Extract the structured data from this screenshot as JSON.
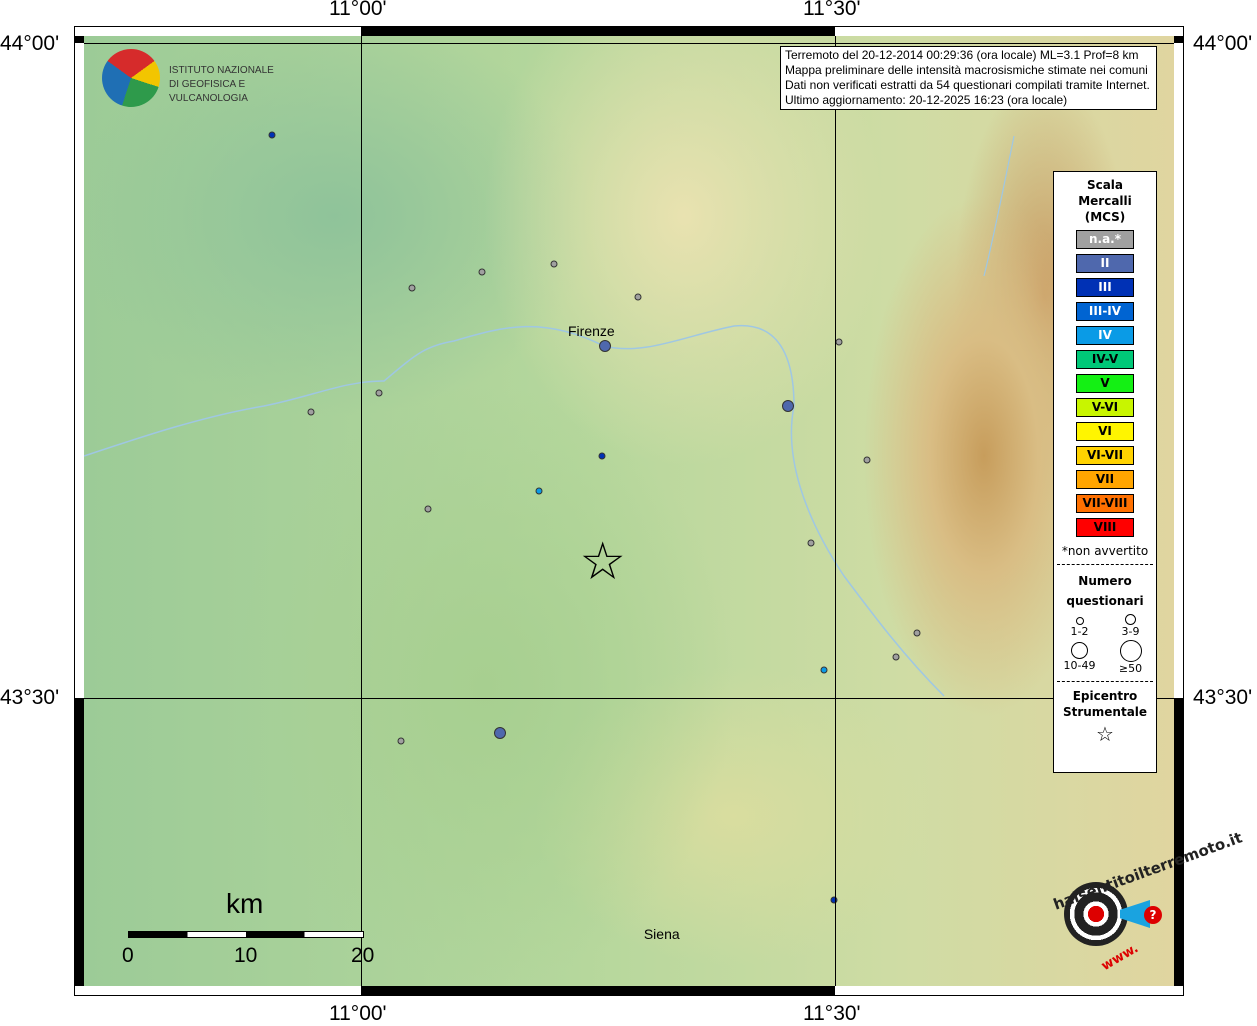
{
  "axes": {
    "lon_labels": [
      "11°00'",
      "11°30'"
    ],
    "lat_labels": [
      "44°00'",
      "43°30'"
    ]
  },
  "logo": {
    "line1": "ISTITUTO NAZIONALE",
    "line2": "DI GEOFISICA E VULCANOLOGIA"
  },
  "info": [
    "Terremoto del 20-12-2014 00:29:36 (ora locale) ML=3.1 Prof=8 km",
    "Mappa preliminare delle intensità macrosismiche stimate nei comuni",
    "Dati non verificati estratti da 54 questionari compilati tramite Internet.",
    "Ultimo aggiornamento: 20-12-2025 16:23 (ora locale)"
  ],
  "legend": {
    "title": [
      "Scala",
      "Mercalli",
      "(MCS)"
    ],
    "classes": [
      {
        "label": "n.a.*",
        "color": "#a0a0a0",
        "text": "#fff"
      },
      {
        "label": "II",
        "color": "#4f68ad",
        "text": "#fff"
      },
      {
        "label": "III",
        "color": "#0031b5",
        "text": "#fff"
      },
      {
        "label": "III-IV",
        "color": "#0064d2",
        "text": "#fff"
      },
      {
        "label": "IV",
        "color": "#0a9be6",
        "text": "#fff"
      },
      {
        "label": "IV-V",
        "color": "#00c878",
        "text": "#000"
      },
      {
        "label": "V",
        "color": "#14f014",
        "text": "#000"
      },
      {
        "label": "V-VI",
        "color": "#c8f500",
        "text": "#000"
      },
      {
        "label": "VI",
        "color": "#fff500",
        "text": "#000"
      },
      {
        "label": "VI-VII",
        "color": "#ffd200",
        "text": "#000"
      },
      {
        "label": "VII",
        "color": "#ffa500",
        "text": "#000"
      },
      {
        "label": "VII-VIII",
        "color": "#ff7000",
        "text": "#000"
      },
      {
        "label": "VIII",
        "color": "#ff0000",
        "text": "#000"
      }
    ],
    "note": "*non avvertito",
    "count_title": [
      "Numero",
      "questionari"
    ],
    "sizes": [
      "1-2",
      "3-9",
      "10-49",
      "≥50"
    ],
    "epi_title": [
      "Epicentro",
      "Strumentale"
    ]
  },
  "cities": [
    {
      "name": "Firenze",
      "lon": 11.25,
      "lat": 43.78
    },
    {
      "name": "Siena",
      "lon": 11.33,
      "lat": 43.32
    }
  ],
  "epicenter": {
    "lon": 11.255,
    "lat": 43.604
  },
  "points": [
    {
      "lon": 10.906,
      "lat": 43.93,
      "class": "III",
      "n": "1-2"
    },
    {
      "lon": 11.128,
      "lat": 43.825,
      "class": "n.a.*",
      "n": "1-2"
    },
    {
      "lon": 11.204,
      "lat": 43.831,
      "class": "n.a.*",
      "n": "1-2"
    },
    {
      "lon": 11.054,
      "lat": 43.813,
      "class": "n.a.*",
      "n": "1-2"
    },
    {
      "lon": 11.292,
      "lat": 43.806,
      "class": "n.a.*",
      "n": "1-2"
    },
    {
      "lon": 11.257,
      "lat": 43.769,
      "class": "II",
      "n": "3-9"
    },
    {
      "lon": 11.504,
      "lat": 43.772,
      "class": "n.a.*",
      "n": "1-2"
    },
    {
      "lon": 11.019,
      "lat": 43.733,
      "class": "n.a.*",
      "n": "1-2"
    },
    {
      "lon": 10.947,
      "lat": 43.718,
      "class": "n.a.*",
      "n": "1-2"
    },
    {
      "lon": 11.45,
      "lat": 43.723,
      "class": "II",
      "n": "3-9"
    },
    {
      "lon": 11.254,
      "lat": 43.685,
      "class": "III",
      "n": "1-2"
    },
    {
      "lon": 11.188,
      "lat": 43.658,
      "class": "IV",
      "n": "1-2"
    },
    {
      "lon": 11.071,
      "lat": 43.644,
      "class": "n.a.*",
      "n": "1-2"
    },
    {
      "lon": 11.534,
      "lat": 43.682,
      "class": "n.a.*",
      "n": "1-2"
    },
    {
      "lon": 11.475,
      "lat": 43.618,
      "class": "n.a.*",
      "n": "1-2"
    },
    {
      "lon": 11.586,
      "lat": 43.55,
      "class": "n.a.*",
      "n": "1-2"
    },
    {
      "lon": 11.564,
      "lat": 43.531,
      "class": "n.a.*",
      "n": "1-2"
    },
    {
      "lon": 11.488,
      "lat": 43.521,
      "class": "IV",
      "n": "1-2"
    },
    {
      "lon": 11.042,
      "lat": 43.467,
      "class": "n.a.*",
      "n": "1-2"
    },
    {
      "lon": 11.147,
      "lat": 43.473,
      "class": "II",
      "n": "3-9"
    },
    {
      "lon": 11.499,
      "lat": 43.346,
      "class": "III",
      "n": "1-2"
    }
  ],
  "scalebar": {
    "unit": "km",
    "ticks": [
      "0",
      "10",
      "20"
    ]
  },
  "badge": {
    "text": "haisentitoilterremoto.it",
    "top": "www.",
    "end": "?"
  }
}
